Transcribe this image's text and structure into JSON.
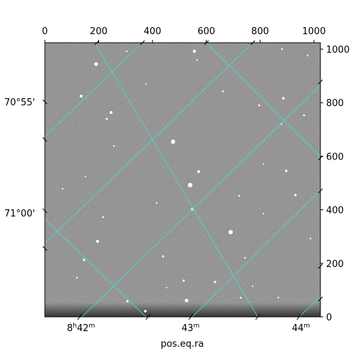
{
  "chart_data": {
    "type": "image",
    "xlabel": "pos.eq.ra",
    "ylabel": "",
    "pixel_axes": {
      "x_range": [
        0,
        1024
      ],
      "y_range": [
        0,
        1024
      ],
      "x_ticks": [
        0,
        200,
        400,
        600,
        800,
        1000
      ],
      "y_ticks": [
        0,
        200,
        400,
        600,
        800,
        1000
      ],
      "x_tick_labels": [
        "0",
        "200",
        "400",
        "600",
        "800",
        "1000"
      ],
      "y_tick_labels": [
        "0",
        "200",
        "400",
        "600",
        "800",
        "1000"
      ]
    },
    "world_axes": {
      "ra_tick_labels": [
        {
          "base": "8",
          "unit1": "h",
          "value": "42",
          "unit2": "m"
        },
        {
          "base": "",
          "unit1": "",
          "value": "43",
          "unit2": "m"
        },
        {
          "base": "",
          "unit1": "",
          "value": "44",
          "unit2": "m"
        }
      ],
      "dec_tick_labels": [
        "70°55'",
        "71°00'"
      ]
    },
    "grid": true,
    "grid_color": "#40e0d0",
    "image_style": "grayscale star field",
    "colors": {
      "background": "#ffffff",
      "grid": "#40e0d0",
      "image_base": "#7a7a7a"
    }
  }
}
